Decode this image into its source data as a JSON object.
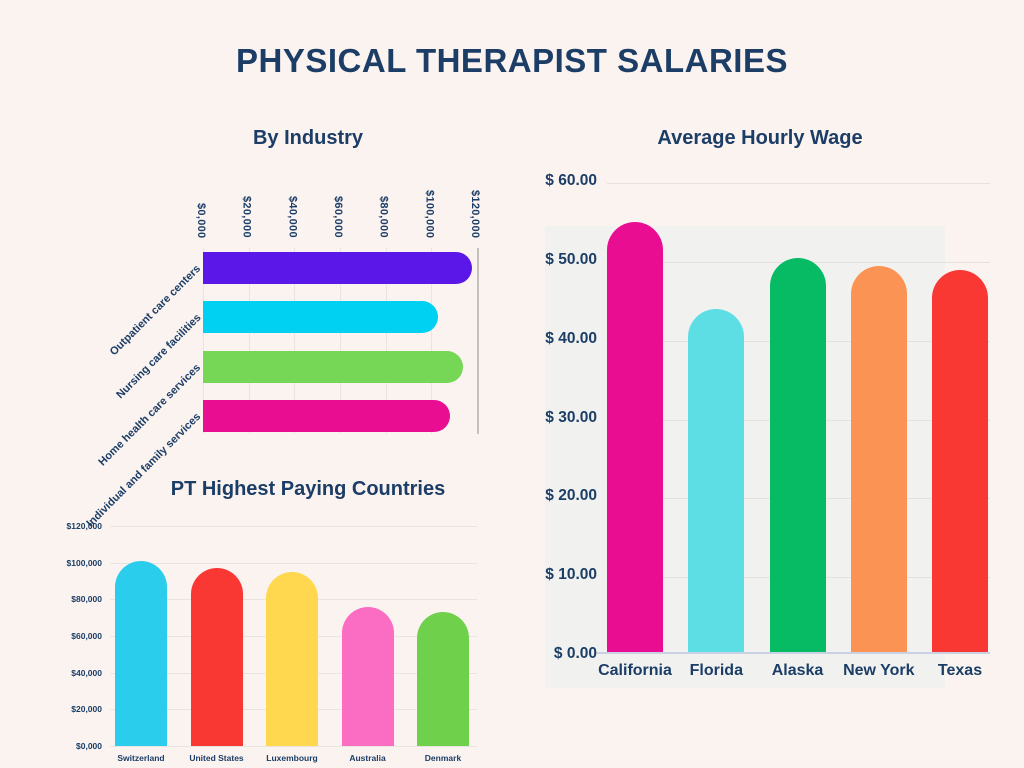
{
  "page": {
    "title": "PHYSICAL THERAPIST SALARIES",
    "background": "#FBF3F0",
    "text_color": "#1B3D66",
    "panel_color": "#F1F2F0",
    "gridline_color": "#EAE4E1",
    "baseline_color": "#CAD1E3"
  },
  "chart_data": [
    {
      "id": "by-industry",
      "type": "bar",
      "orientation": "horizontal",
      "title": "By Industry",
      "categories": [
        "Outpatient care centers",
        "Nursing care facilities",
        "Home health care services",
        "Individual and family services"
      ],
      "values": [
        118000,
        103000,
        114000,
        108000
      ],
      "bar_colors": [
        "#5A17E8",
        "#00D1F2",
        "#75D755",
        "#E90D92"
      ],
      "x_tick_labels": [
        "$0,000",
        "$20,000",
        "$40,000",
        "$60,000",
        "$80,000",
        "$100,000",
        "$120,000"
      ],
      "xlim": [
        0,
        120000
      ],
      "grid": "vertical gridlines every $20,000, darker axis line at $120,000",
      "tick_label_rotation": 90,
      "category_label_rotation": -45,
      "legend": "none"
    },
    {
      "id": "pt-highest-paying-countries",
      "type": "bar",
      "orientation": "vertical",
      "title": "PT Highest Paying Countries",
      "categories": [
        "Switzerland",
        "United States",
        "Luxembourg",
        "Australia",
        "Denmark"
      ],
      "values": [
        101000,
        97000,
        95000,
        76000,
        73000
      ],
      "bar_colors": [
        "#2BCDEC",
        "#F93834",
        "#FFD84F",
        "#FB6CC3",
        "#6FD04B"
      ],
      "y_tick_labels": [
        "$120,000",
        "$100,000",
        "$80,000",
        "$60,000",
        "$40,000",
        "$20,000",
        "$0,000"
      ],
      "ylim": [
        0,
        120000
      ],
      "grid": "horizontal gridlines every $20,000",
      "legend": "none"
    },
    {
      "id": "average-hourly-wage",
      "type": "bar",
      "orientation": "vertical",
      "title": "Average Hourly Wage",
      "categories": [
        "California",
        "Florida",
        "Alaska",
        "New York",
        "Texas"
      ],
      "values": [
        55,
        44,
        50.5,
        49.5,
        49
      ],
      "bar_colors": [
        "#E90D92",
        "#5CDEE4",
        "#07BB64",
        "#FB9355",
        "#F93834"
      ],
      "y_tick_labels": [
        "$ 60.00",
        "$ 50.00",
        "$ 40.00",
        "$ 30.00",
        "$ 20.00",
        "$ 10.00",
        "$ 0.00"
      ],
      "ylim": [
        0,
        60
      ],
      "grid": "horizontal gridlines every $10.00 on light gray plot panel",
      "legend": "none"
    }
  ]
}
